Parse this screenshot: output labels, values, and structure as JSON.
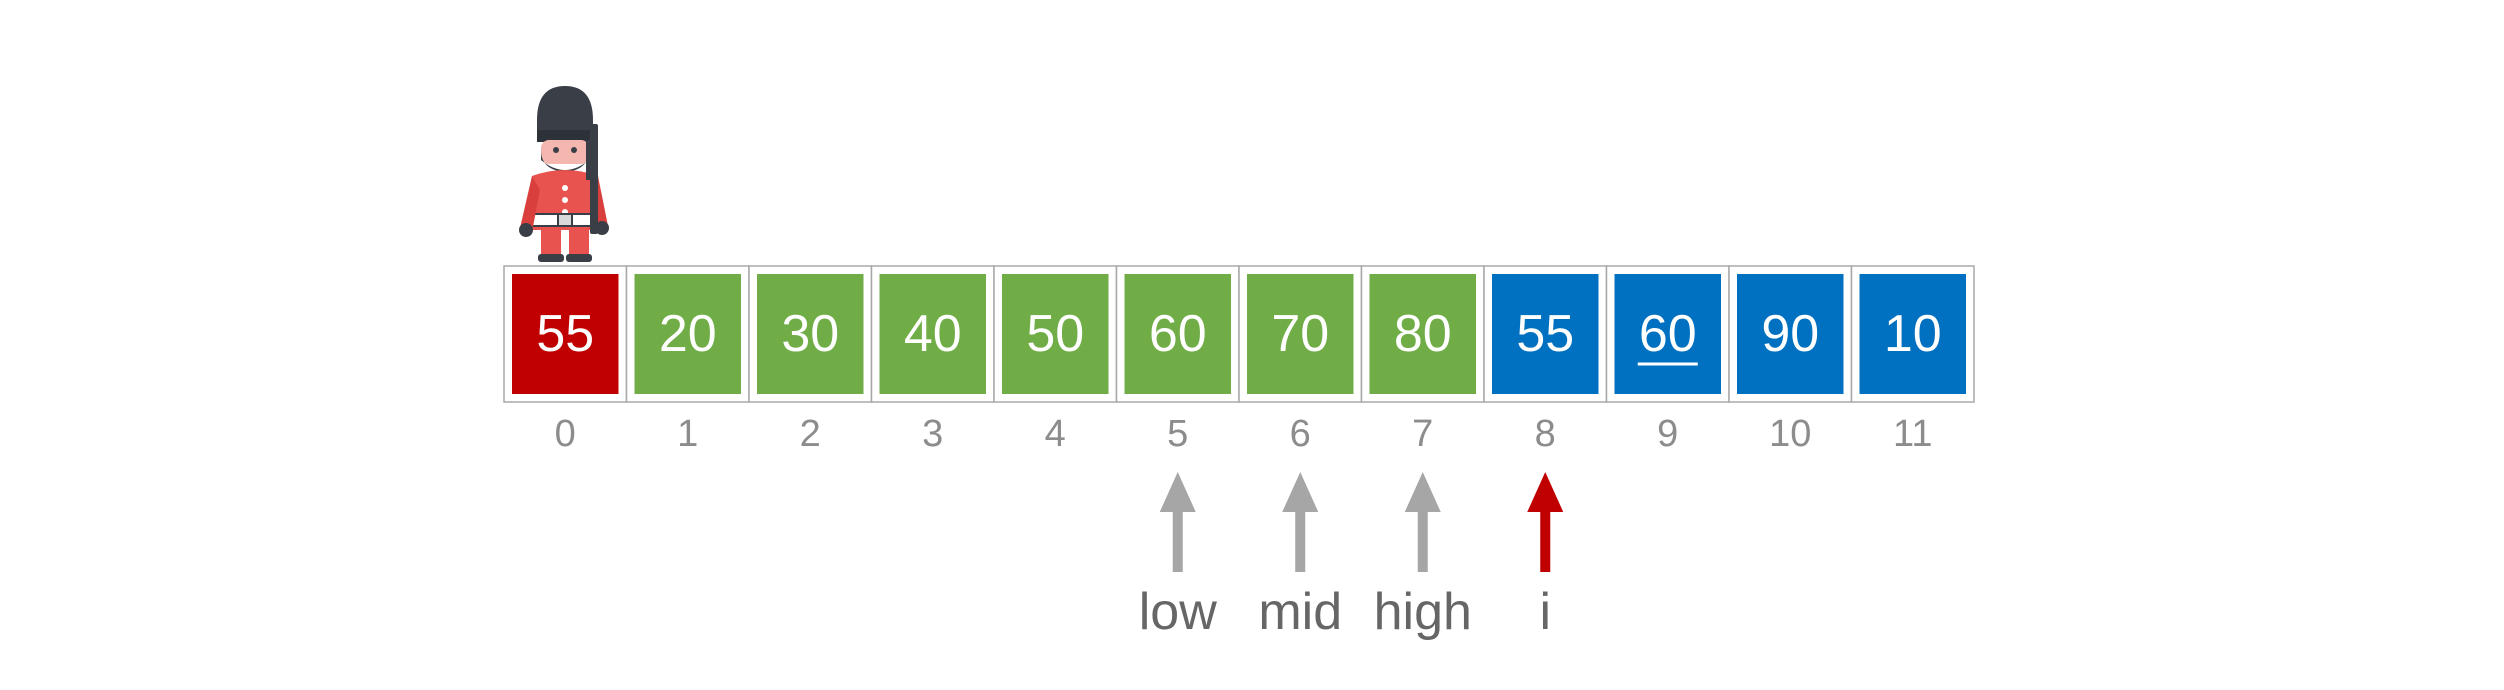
{
  "colors": {
    "sentinel": "#c00000",
    "sorted": "#70ad47",
    "unsorted": "#0070c0",
    "pointer_gray": "#a6a6a6",
    "pointer_red": "#c00000",
    "index_text": "#8c8c8c",
    "label_text": "#666666"
  },
  "sentinel_icon": "royal-guard-icon",
  "array": {
    "values": [
      "55",
      "20",
      "30",
      "40",
      "50",
      "60",
      "70",
      "80",
      "55",
      "60",
      "90",
      "10"
    ],
    "indices": [
      "0",
      "1",
      "2",
      "3",
      "4",
      "5",
      "6",
      "7",
      "8",
      "9",
      "10",
      "11"
    ],
    "cell_kinds": [
      "sentinel",
      "sorted",
      "sorted",
      "sorted",
      "sorted",
      "sorted",
      "sorted",
      "sorted",
      "unsorted",
      "unsorted",
      "unsorted",
      "unsorted"
    ],
    "underlined_index": 9
  },
  "pointers": [
    {
      "label": "low",
      "at_index": 5,
      "color": "pointer_gray"
    },
    {
      "label": "mid",
      "at_index": 6,
      "color": "pointer_gray"
    },
    {
      "label": "high",
      "at_index": 7,
      "color": "pointer_gray"
    },
    {
      "label": "i",
      "at_index": 8,
      "color": "pointer_red"
    }
  ]
}
